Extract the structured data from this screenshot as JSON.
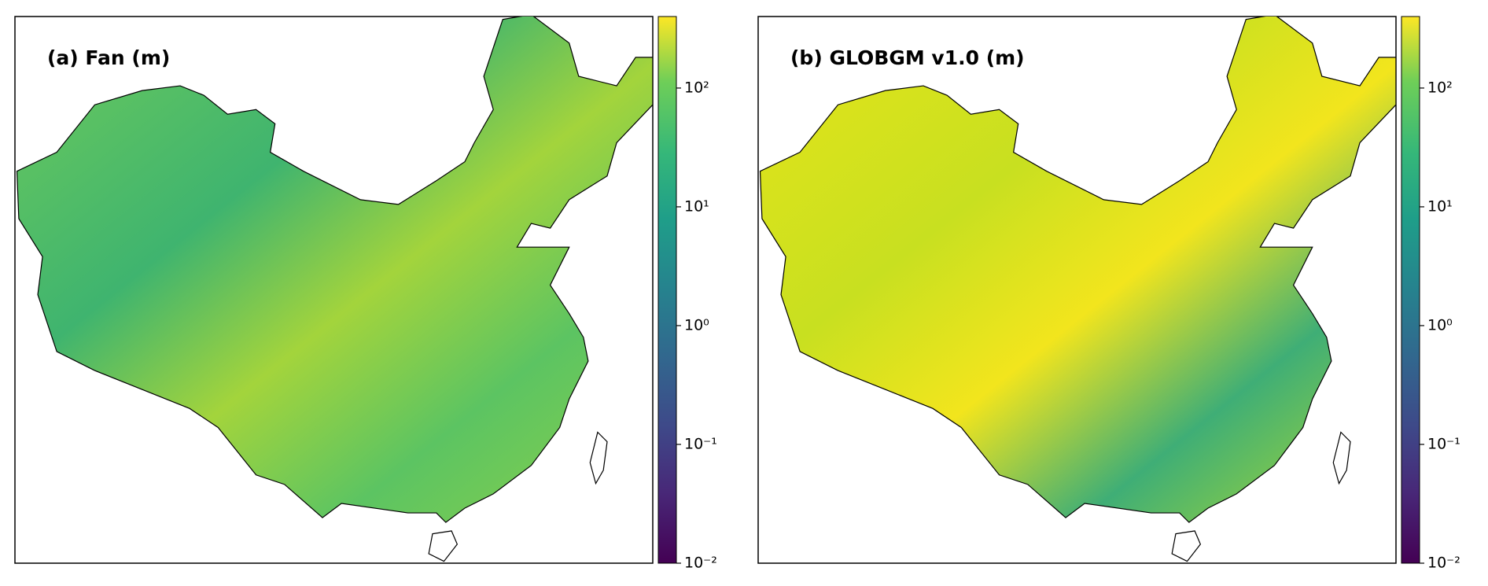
{
  "chart_data": [
    {
      "type": "map",
      "title": "(a) Fan (m)",
      "colorbar": {
        "lim": [
          0.01,
          400
        ],
        "log_scale": true,
        "ticks": [
          {
            "value": 0.01,
            "label": "10⁻²"
          },
          {
            "value": 0.1,
            "label": "10⁻¹"
          },
          {
            "value": 1,
            "label": "10⁰"
          },
          {
            "value": 10,
            "label": "10¹"
          },
          {
            "value": 100,
            "label": "10²"
          }
        ]
      }
    },
    {
      "type": "map",
      "title": "(b) GLOBGM v1.0 (m)",
      "colorbar": {
        "lim": [
          0.01,
          400
        ],
        "log_scale": true,
        "ticks": [
          {
            "value": 0.01,
            "label": "10⁻²"
          },
          {
            "value": 0.1,
            "label": "10⁻¹"
          },
          {
            "value": 1,
            "label": "10⁰"
          },
          {
            "value": 10,
            "label": "10¹"
          },
          {
            "value": 100,
            "label": "10²"
          }
        ]
      }
    }
  ]
}
